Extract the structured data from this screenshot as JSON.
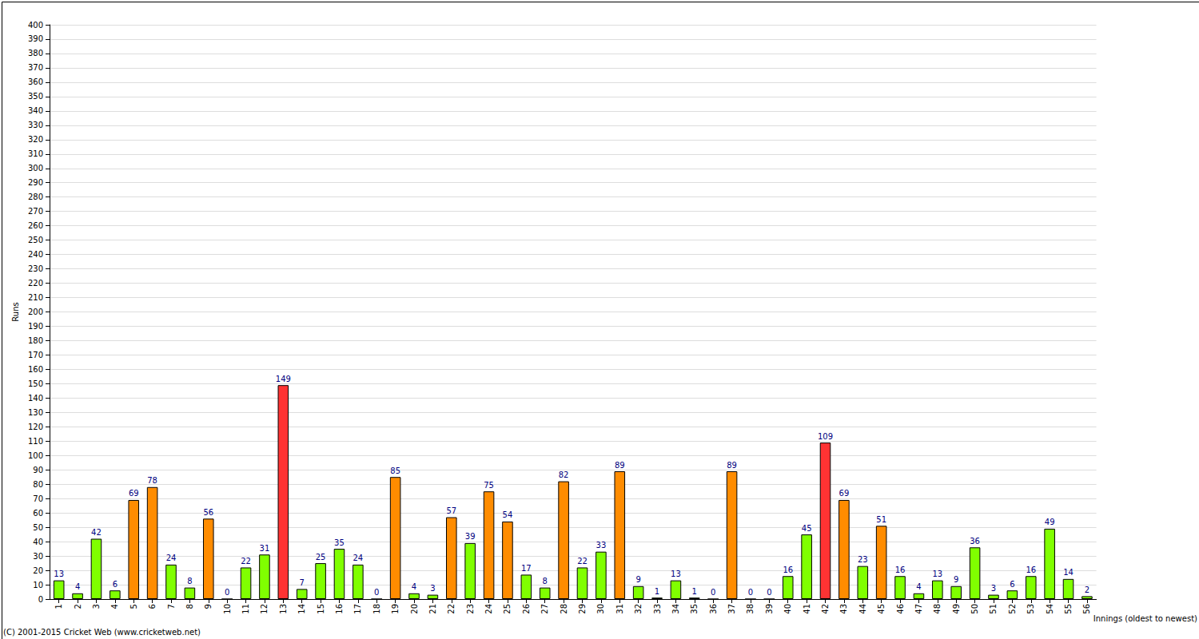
{
  "chart_data": {
    "type": "bar",
    "x_label": "Innings (oldest to newest)",
    "y_label": "Runs",
    "annotations": [
      "(C) 2001-2015 Cricket Web (www.cricketweb.net)"
    ],
    "categories": [
      "1",
      "2",
      "3",
      "4",
      "5",
      "6",
      "7",
      "8",
      "9",
      "10",
      "11",
      "12",
      "13",
      "14",
      "15",
      "16",
      "17",
      "18",
      "19",
      "20",
      "21",
      "22",
      "23",
      "24",
      "25",
      "26",
      "27",
      "28",
      "29",
      "30",
      "31",
      "32",
      "33",
      "34",
      "35",
      "36",
      "37",
      "38",
      "39",
      "40",
      "41",
      "42",
      "43",
      "44",
      "45",
      "46",
      "47",
      "48",
      "49",
      "50",
      "51",
      "52",
      "53",
      "54",
      "55",
      "56"
    ],
    "values": [
      13,
      4,
      42,
      6,
      69,
      78,
      24,
      8,
      56,
      0,
      22,
      31,
      149,
      7,
      25,
      35,
      24,
      0,
      85,
      4,
      3,
      57,
      39,
      75,
      54,
      17,
      8,
      82,
      22,
      33,
      89,
      9,
      1,
      13,
      1,
      0,
      89,
      0,
      0,
      16,
      45,
      109,
      69,
      23,
      51,
      16,
      4,
      13,
      9,
      36,
      3,
      6,
      16,
      49,
      14,
      2
    ],
    "colors": [
      "#80ff00",
      "#80ff00",
      "#80ff00",
      "#80ff00",
      "#ff8c00",
      "#ff8c00",
      "#80ff00",
      "#80ff00",
      "#ff8c00",
      "#80ff00",
      "#80ff00",
      "#80ff00",
      "#ff3333",
      "#80ff00",
      "#80ff00",
      "#80ff00",
      "#80ff00",
      "#80ff00",
      "#ff8c00",
      "#80ff00",
      "#80ff00",
      "#ff8c00",
      "#80ff00",
      "#ff8c00",
      "#ff8c00",
      "#80ff00",
      "#80ff00",
      "#ff8c00",
      "#80ff00",
      "#80ff00",
      "#ff8c00",
      "#80ff00",
      "#80ff00",
      "#80ff00",
      "#80ff00",
      "#80ff00",
      "#ff8c00",
      "#80ff00",
      "#80ff00",
      "#80ff00",
      "#80ff00",
      "#ff3333",
      "#ff8c00",
      "#80ff00",
      "#ff8c00",
      "#80ff00",
      "#80ff00",
      "#80ff00",
      "#80ff00",
      "#80ff00",
      "#80ff00",
      "#80ff00",
      "#80ff00",
      "#80ff00",
      "#80ff00",
      "#80ff00"
    ],
    "ylim": [
      0,
      400
    ],
    "yticks": [
      0,
      10,
      20,
      30,
      40,
      50,
      60,
      70,
      80,
      90,
      100,
      110,
      120,
      130,
      140,
      150,
      160,
      170,
      180,
      190,
      200,
      210,
      220,
      230,
      240,
      250,
      260,
      270,
      280,
      290,
      300,
      310,
      320,
      330,
      340,
      350,
      360,
      370,
      380,
      390,
      400
    ],
    "grid": true,
    "data_labels": true
  }
}
